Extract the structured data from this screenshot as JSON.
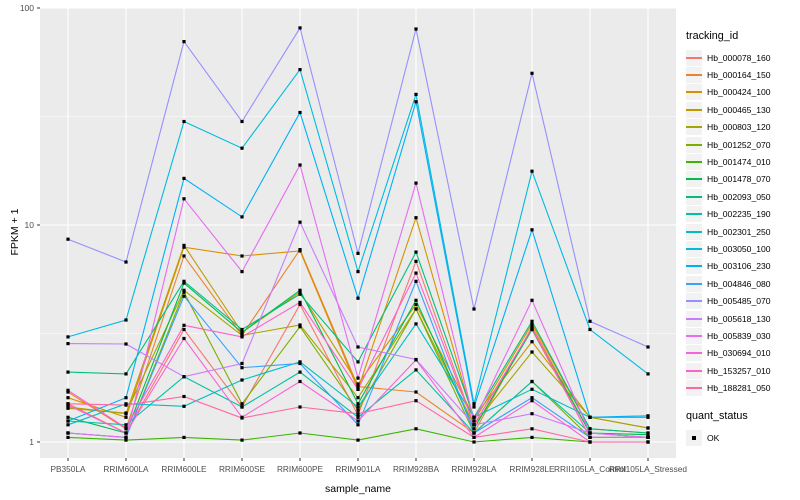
{
  "chart_data": {
    "type": "line",
    "title": "",
    "xlabel": "sample_name",
    "ylabel": "FPKM + 1",
    "y_scale": "log10",
    "ylim": [
      1,
      100
    ],
    "y_ticks": [
      1,
      10,
      100
    ],
    "y_tick_labels": [
      "1",
      "10",
      "100"
    ],
    "y_minor_breaks": [
      3.162,
      31.62
    ],
    "grid": true,
    "legend_position": "right",
    "point_shape": "square",
    "point_color": "#000000",
    "categories": [
      "PB350LA",
      "RRIM600LA",
      "RRIM600LE",
      "RRIM600SE",
      "RRIM600PE",
      "RRIM901LA",
      "RRIM928BA",
      "RRIM928LA",
      "RRIM928LE",
      "RRII105LA_Control",
      "RRII105LA_Stressed"
    ],
    "series": [
      {
        "name": "Hb_000078_160",
        "color": "#F8766D",
        "values": [
          1.5,
          1.1,
          3.3,
          1.45,
          4.3,
          1.33,
          6.8,
          1.2,
          3.3,
          1.05,
          1.05
        ]
      },
      {
        "name": "Hb_000164_150",
        "color": "#EA8331",
        "values": [
          1.7,
          1.15,
          7.2,
          3.1,
          7.7,
          1.8,
          1.7,
          1.1,
          3.4,
          1.1,
          1.05
        ]
      },
      {
        "name": "Hb_000424_100",
        "color": "#D89000",
        "values": [
          1.6,
          1.3,
          7.9,
          7.2,
          7.6,
          1.75,
          10.8,
          1.25,
          3.5,
          1.15,
          1.1
        ]
      },
      {
        "name": "Hb_000465_130",
        "color": "#C09B00",
        "values": [
          1.45,
          1.35,
          8.05,
          3.2,
          4.9,
          1.85,
          4.3,
          1.3,
          2.9,
          1.3,
          1.16
        ]
      },
      {
        "name": "Hb_000803_120",
        "color": "#A3A500",
        "values": [
          1.43,
          1.36,
          5.0,
          3.1,
          3.46,
          1.6,
          4.1,
          1.2,
          2.6,
          1.3,
          1.16
        ]
      },
      {
        "name": "Hb_001252_070",
        "color": "#7CAE00",
        "values": [
          1.1,
          1.05,
          4.9,
          1.5,
          3.4,
          1.4,
          4.1,
          1.1,
          1.9,
          1.05,
          1.05
        ]
      },
      {
        "name": "Hb_001474_010",
        "color": "#39B600",
        "values": [
          1.05,
          1.02,
          1.05,
          1.02,
          1.1,
          1.02,
          1.15,
          1.0,
          1.05,
          1.0,
          1.0
        ]
      },
      {
        "name": "Hb_001478_070",
        "color": "#00BB4E",
        "values": [
          1.3,
          1.1,
          5.4,
          3.2,
          5.0,
          1.5,
          4.5,
          1.15,
          3.3,
          1.1,
          1.08
        ]
      },
      {
        "name": "Hb_002093_050",
        "color": "#00BF7D",
        "values": [
          2.1,
          2.06,
          5.5,
          3.3,
          4.8,
          2.34,
          7.5,
          1.3,
          3.6,
          1.15,
          1.1
        ]
      },
      {
        "name": "Hb_002235_190",
        "color": "#00C1A3",
        "values": [
          1.25,
          1.2,
          2.0,
          1.45,
          2.1,
          1.3,
          2.15,
          1.1,
          1.9,
          1.1,
          1.05
        ]
      },
      {
        "name": "Hb_002301_250",
        "color": "#00BFC4",
        "values": [
          1.2,
          1.5,
          1.46,
          1.93,
          2.34,
          1.45,
          3.5,
          1.3,
          1.75,
          1.3,
          1.3
        ]
      },
      {
        "name": "Hb_003050_100",
        "color": "#00BAE0",
        "values": [
          3.05,
          3.65,
          30,
          22.6,
          52,
          6.1,
          40,
          1.5,
          17.7,
          3.3,
          2.06
        ]
      },
      {
        "name": "Hb_003106_230",
        "color": "#00B0F6",
        "values": [
          1.25,
          1.6,
          16.4,
          10.9,
          33,
          4.6,
          37,
          1.45,
          9.5,
          1.3,
          1.32
        ]
      },
      {
        "name": "Hb_004846_080",
        "color": "#35A2FF",
        "values": [
          1.1,
          1.05,
          4.7,
          2.2,
          2.3,
          1.2,
          5.5,
          1.1,
          1.6,
          1.05,
          1.05
        ]
      },
      {
        "name": "Hb_005485_070",
        "color": "#9590FF",
        "values": [
          8.6,
          6.75,
          70,
          30,
          81,
          7.4,
          80,
          4.1,
          50,
          3.6,
          2.74
        ]
      },
      {
        "name": "Hb_005618_130",
        "color": "#C77CFF",
        "values": [
          2.84,
          2.83,
          2.0,
          2.3,
          10.3,
          2.74,
          2.4,
          1.2,
          1.35,
          1.1,
          1.05
        ]
      },
      {
        "name": "Hb_005839_030",
        "color": "#E76BF3",
        "values": [
          1.1,
          1.05,
          13.2,
          6.1,
          18.9,
          1.97,
          15.6,
          1.25,
          4.5,
          1.1,
          1.05
        ]
      },
      {
        "name": "Hb_030694_010",
        "color": "#FA62DB",
        "values": [
          1.48,
          1.1,
          3.0,
          1.3,
          1.9,
          1.25,
          2.39,
          1.05,
          1.55,
          1.0,
          1.0
        ]
      },
      {
        "name": "Hb_153257_010",
        "color": "#FF61CC",
        "values": [
          1.73,
          1.16,
          3.45,
          3.05,
          4.4,
          1.75,
          6.0,
          1.2,
          3.35,
          1.05,
          1.05
        ]
      },
      {
        "name": "Hb_188281_050",
        "color": "#FF67A4",
        "values": [
          1.5,
          1.48,
          1.62,
          1.29,
          1.45,
          1.35,
          1.55,
          1.05,
          1.15,
          1.0,
          1.0
        ]
      }
    ]
  },
  "legend": {
    "tracking_title": "tracking_id",
    "quant_title": "quant_status",
    "quant_items": [
      {
        "label": "OK",
        "shape": "black-square"
      }
    ]
  },
  "colors": {
    "panel_bg": "#EBEBEB",
    "grid": "#FFFFFF",
    "key_bg": "#F2F2F2",
    "tick_label": "#4D4D4D",
    "tick_mark": "#333333",
    "axis_title": "#000000"
  }
}
